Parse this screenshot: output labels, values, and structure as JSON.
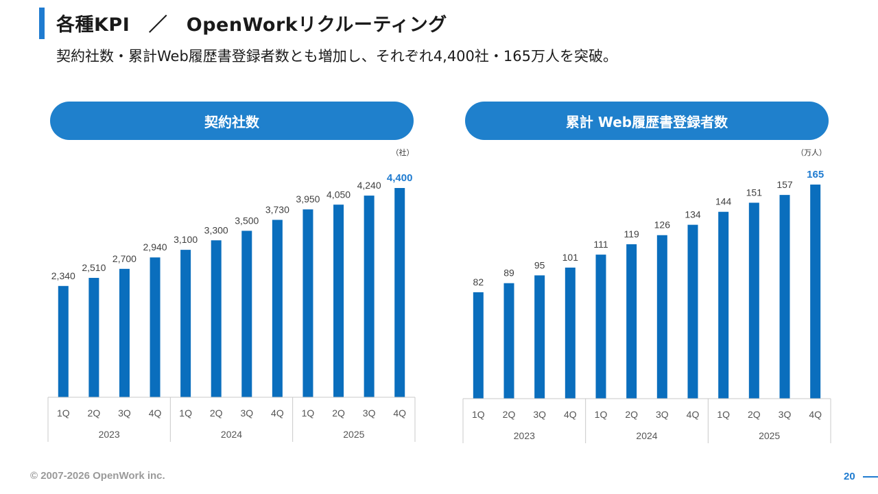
{
  "slide": {
    "title": "各種KPI　／　OpenWorkリクルーティング",
    "subtitle": "契約社数・累計Web履歴書登録者数とも増加し、それぞれ4,400社・165万人を突破。",
    "copyright": "© 2007-2026 OpenWork inc.",
    "page_number": "20",
    "accent_color": "#1f7bd0"
  },
  "chart_data": [
    {
      "type": "bar",
      "title": "契約社数",
      "unit_label": "（社）",
      "quarters": [
        "1Q",
        "2Q",
        "3Q",
        "4Q",
        "1Q",
        "2Q",
        "3Q",
        "4Q",
        "1Q",
        "2Q",
        "3Q",
        "4Q"
      ],
      "years": [
        "2023",
        "2024",
        "2025"
      ],
      "values": [
        2340,
        2510,
        2700,
        2940,
        3100,
        3300,
        3500,
        3730,
        3950,
        4050,
        4240,
        4400
      ],
      "labels": [
        "2,340",
        "2,510",
        "2,700",
        "2,940",
        "3,100",
        "3,300",
        "3,500",
        "3,730",
        "3,950",
        "4,050",
        "4,240",
        "4,400"
      ],
      "highlight_last": true,
      "bar_color": "#0a6ebd",
      "highlight_color": "#1f7bd0",
      "ylim": [
        0,
        4400
      ]
    },
    {
      "type": "bar",
      "title": "累計 Web履歴書登録者数",
      "unit_label": "（万人）",
      "quarters": [
        "1Q",
        "2Q",
        "3Q",
        "4Q",
        "1Q",
        "2Q",
        "3Q",
        "4Q",
        "1Q",
        "2Q",
        "3Q",
        "4Q"
      ],
      "years": [
        "2023",
        "2024",
        "2025"
      ],
      "values": [
        82,
        89,
        95,
        101,
        111,
        119,
        126,
        134,
        144,
        151,
        157,
        165
      ],
      "labels": [
        "82",
        "89",
        "95",
        "101",
        "111",
        "119",
        "126",
        "134",
        "144",
        "151",
        "157",
        "165"
      ],
      "highlight_last": true,
      "bar_color": "#0a6ebd",
      "highlight_color": "#1f7bd0",
      "ylim": [
        0,
        165
      ]
    }
  ]
}
